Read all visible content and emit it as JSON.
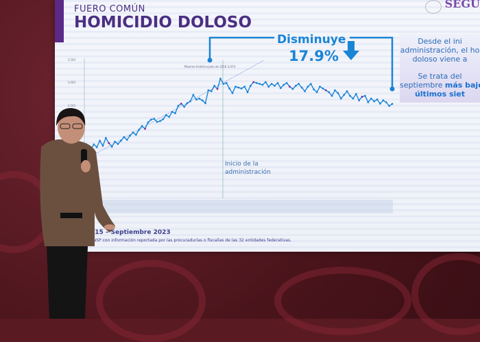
{
  "slide": {
    "subtitle": "FUERO COMÚN",
    "title": "HOMICIDIO DOLOSO",
    "logo_text": "SEGU",
    "callout_label": "Disminuye",
    "callout_value": "17.9%",
    "note_line1": "Desde el ini",
    "note_line2": "administración, el ho",
    "note_line3": "doloso viene a",
    "note_line4": "Se trata del",
    "note_line5a": "septiembre ",
    "note_line5b": "más baje",
    "note_line6": "últimos siet",
    "period": "015 – Septiembre 2023",
    "source": "SNSP con información reportada por las procuradurías o fiscalías de las 32 entidades federativas.",
    "admin_start_label": "Inicio de la administración",
    "peak_label": "Máximo histórico Julio de 2018 3,074"
  },
  "colors": {
    "accent": "#1a84d6",
    "title": "#4b2f82",
    "highlight": "#8a2a9a"
  },
  "chart_data": {
    "type": "line",
    "yticks": [
      "3,500",
      "3,000",
      "2,500"
    ],
    "ylim": [
      1400,
      3600
    ],
    "values": [
      1600,
      1520,
      1640,
      1580,
      1720,
      1610,
      1780,
      1670,
      1590,
      1700,
      1650,
      1720,
      1800,
      1740,
      1830,
      1900,
      1850,
      1960,
      2040,
      1980,
      2120,
      2180,
      2200,
      2130,
      2150,
      2190,
      2280,
      2240,
      2350,
      2320,
      2480,
      2530,
      2460,
      2540,
      2580,
      2720,
      2620,
      2640,
      2600,
      2540,
      2820,
      2800,
      2920,
      2850,
      3074,
      2960,
      2980,
      2860,
      2760,
      2900,
      2880,
      2860,
      2900,
      2780,
      2920,
      3000,
      2980,
      2960,
      2940,
      3000,
      2900,
      2960,
      2920,
      2980,
      2870,
      2940,
      2980,
      2900,
      2850,
      2920,
      2960,
      2880,
      2800,
      2900,
      2960,
      2840,
      2780,
      2900,
      2860,
      2820,
      2780,
      2700,
      2820,
      2760,
      2640,
      2720,
      2800,
      2700,
      2640,
      2740,
      2600,
      2680,
      2700,
      2560,
      2640,
      2580,
      2620,
      2530,
      2600,
      2560,
      2480,
      2523
    ]
  }
}
